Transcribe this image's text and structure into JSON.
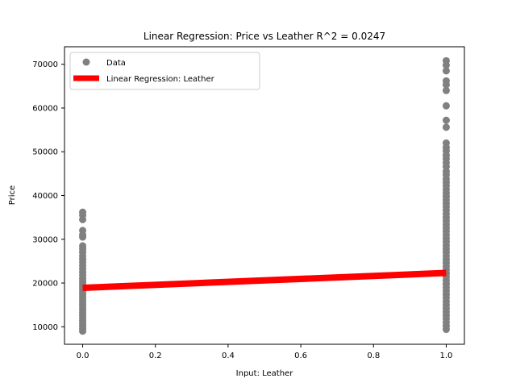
{
  "chart_data": {
    "type": "scatter",
    "title": "Linear Regression: Price vs Leather  R^2 = 0.0247",
    "xlabel": "Input: Leather",
    "ylabel": "Price",
    "xlim": [
      -0.05,
      1.05
    ],
    "ylim": [
      6000,
      74000
    ],
    "x_ticks": [
      0.0,
      0.2,
      0.4,
      0.6,
      0.8,
      1.0
    ],
    "x_tick_labels": [
      "0.0",
      "0.2",
      "0.4",
      "0.6",
      "0.8",
      "1.0"
    ],
    "y_ticks": [
      10000,
      20000,
      30000,
      40000,
      50000,
      60000,
      70000
    ],
    "y_tick_labels": [
      "10000",
      "20000",
      "30000",
      "40000",
      "50000",
      "60000",
      "70000"
    ],
    "grid": false,
    "legend": {
      "placement": "top-left",
      "entries": [
        {
          "label": "Data",
          "color": "#808080",
          "marker": "circle"
        },
        {
          "label": "Linear Regression: Leather",
          "color": "#ff0000",
          "marker": "line"
        }
      ]
    },
    "series": [
      {
        "name": "Data",
        "kind": "scatter",
        "color": "#808080",
        "points": [
          {
            "x": 0,
            "y": 36200
          },
          {
            "x": 0,
            "y": 35500
          },
          {
            "x": 0,
            "y": 34500
          },
          {
            "x": 0,
            "y": 32000
          },
          {
            "x": 0,
            "y": 31000
          },
          {
            "x": 0,
            "y": 30500
          },
          {
            "x": 0,
            "y": 28500
          },
          {
            "x": 0,
            "y": 27800
          },
          {
            "x": 0,
            "y": 27000
          },
          {
            "x": 0,
            "y": 26200
          },
          {
            "x": 0,
            "y": 25500
          },
          {
            "x": 0,
            "y": 24800
          },
          {
            "x": 0,
            "y": 24000
          },
          {
            "x": 0,
            "y": 23200
          },
          {
            "x": 0,
            "y": 22500
          },
          {
            "x": 0,
            "y": 21800
          },
          {
            "x": 0,
            "y": 21000
          },
          {
            "x": 0,
            "y": 20400
          },
          {
            "x": 0,
            "y": 19800
          },
          {
            "x": 0,
            "y": 19200
          },
          {
            "x": 0,
            "y": 18600
          },
          {
            "x": 0,
            "y": 18000
          },
          {
            "x": 0,
            "y": 17400
          },
          {
            "x": 0,
            "y": 16800
          },
          {
            "x": 0,
            "y": 16200
          },
          {
            "x": 0,
            "y": 15600
          },
          {
            "x": 0,
            "y": 15000
          },
          {
            "x": 0,
            "y": 14400
          },
          {
            "x": 0,
            "y": 13800
          },
          {
            "x": 0,
            "y": 13200
          },
          {
            "x": 0,
            "y": 12600
          },
          {
            "x": 0,
            "y": 12000
          },
          {
            "x": 0,
            "y": 11400
          },
          {
            "x": 0,
            "y": 10800
          },
          {
            "x": 0,
            "y": 10200
          },
          {
            "x": 0,
            "y": 9600
          },
          {
            "x": 0,
            "y": 9000
          },
          {
            "x": 1,
            "y": 70800
          },
          {
            "x": 1,
            "y": 69800
          },
          {
            "x": 1,
            "y": 68500
          },
          {
            "x": 1,
            "y": 66200
          },
          {
            "x": 1,
            "y": 65300
          },
          {
            "x": 1,
            "y": 64000
          },
          {
            "x": 1,
            "y": 60500
          },
          {
            "x": 1,
            "y": 57200
          },
          {
            "x": 1,
            "y": 55600
          },
          {
            "x": 1,
            "y": 52000
          },
          {
            "x": 1,
            "y": 51000
          },
          {
            "x": 1,
            "y": 50200
          },
          {
            "x": 1,
            "y": 49200
          },
          {
            "x": 1,
            "y": 48400
          },
          {
            "x": 1,
            "y": 47500
          },
          {
            "x": 1,
            "y": 46600
          },
          {
            "x": 1,
            "y": 45500
          },
          {
            "x": 1,
            "y": 44700
          },
          {
            "x": 1,
            "y": 43800
          },
          {
            "x": 1,
            "y": 43000
          },
          {
            "x": 1,
            "y": 42200
          },
          {
            "x": 1,
            "y": 41400
          },
          {
            "x": 1,
            "y": 40600
          },
          {
            "x": 1,
            "y": 39800
          },
          {
            "x": 1,
            "y": 39000
          },
          {
            "x": 1,
            "y": 38200
          },
          {
            "x": 1,
            "y": 37400
          },
          {
            "x": 1,
            "y": 36600
          },
          {
            "x": 1,
            "y": 35800
          },
          {
            "x": 1,
            "y": 35000
          },
          {
            "x": 1,
            "y": 34200
          },
          {
            "x": 1,
            "y": 33400
          },
          {
            "x": 1,
            "y": 32600
          },
          {
            "x": 1,
            "y": 31800
          },
          {
            "x": 1,
            "y": 31000
          },
          {
            "x": 1,
            "y": 30200
          },
          {
            "x": 1,
            "y": 29400
          },
          {
            "x": 1,
            "y": 28600
          },
          {
            "x": 1,
            "y": 27800
          },
          {
            "x": 1,
            "y": 27000
          },
          {
            "x": 1,
            "y": 26200
          },
          {
            "x": 1,
            "y": 25400
          },
          {
            "x": 1,
            "y": 24600
          },
          {
            "x": 1,
            "y": 23800
          },
          {
            "x": 1,
            "y": 23000
          },
          {
            "x": 1,
            "y": 22200
          },
          {
            "x": 1,
            "y": 21400
          },
          {
            "x": 1,
            "y": 20600
          },
          {
            "x": 1,
            "y": 19800
          },
          {
            "x": 1,
            "y": 19000
          },
          {
            "x": 1,
            "y": 18200
          },
          {
            "x": 1,
            "y": 17400
          },
          {
            "x": 1,
            "y": 16600
          },
          {
            "x": 1,
            "y": 15800
          },
          {
            "x": 1,
            "y": 15000
          },
          {
            "x": 1,
            "y": 14200
          },
          {
            "x": 1,
            "y": 13400
          },
          {
            "x": 1,
            "y": 12600
          },
          {
            "x": 1,
            "y": 11800
          },
          {
            "x": 1,
            "y": 11000
          },
          {
            "x": 1,
            "y": 10200
          },
          {
            "x": 1,
            "y": 9400
          }
        ]
      },
      {
        "name": "Linear Regression: Leather",
        "kind": "line",
        "color": "#ff0000",
        "points": [
          {
            "x": 0,
            "y": 18900
          },
          {
            "x": 1,
            "y": 22300
          }
        ]
      }
    ]
  }
}
